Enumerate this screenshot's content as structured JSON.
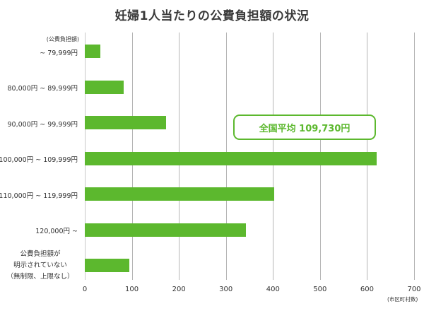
{
  "title": "妊婦1人当たりの公費負担額の状況",
  "chart_data": {
    "type": "bar",
    "orientation": "horizontal",
    "title": "妊婦1人当たりの公費負担額の状況",
    "ylabel": "(公費負担額)",
    "xlabel": "(市区町村数)",
    "categories": [
      "~ 79,999円",
      "80,000円 ~ 89,999円",
      "90,000円 ~ 99,999円",
      "100,000円 ~ 109,999円",
      "110,000円 ~ 119,999円",
      "120,000円 ~",
      "公費負担額が明示されていない（無制限、上限なし）"
    ],
    "category_lines": [
      [
        "~ 79,999円"
      ],
      [
        "80,000円 ~ 89,999円"
      ],
      [
        "90,000円 ~ 99,999円"
      ],
      [
        "100,000円 ~ 109,999円"
      ],
      [
        "110,000円 ~ 119,999円"
      ],
      [
        "120,000円 ~"
      ],
      [
        "公費負担額が",
        "明示されていない",
        "（無制限、上限なし）"
      ]
    ],
    "values": [
      33,
      83,
      173,
      620,
      403,
      342,
      95
    ],
    "xlim": [
      0,
      700
    ],
    "xticks": [
      "0",
      "100",
      "200",
      "300",
      "400",
      "500",
      "600",
      "700"
    ],
    "grid": true,
    "bar_color": "#5cb82e",
    "annotation": "全国平均 109,730円"
  },
  "callout": {
    "label": "全国平均 109,730円",
    "color": "#5cb82e"
  }
}
